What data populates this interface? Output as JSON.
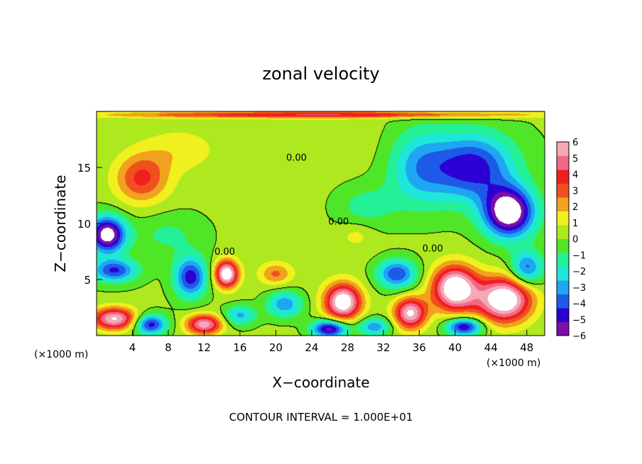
{
  "chart_data": {
    "type": "heatmap",
    "title": "zonal velocity",
    "xlabel": "X−coordinate",
    "ylabel": "Z−coordinate",
    "x_unit_left": "(×1000 m)",
    "x_unit_right": "(×1000 m)",
    "footer": "CONTOUR INTERVAL = 1.000E+01",
    "xlim": [
      0,
      50
    ],
    "ylim": [
      0,
      20
    ],
    "x_ticks": [
      {
        "value": 4,
        "label": "4"
      },
      {
        "value": 8,
        "label": "8"
      },
      {
        "value": 12,
        "label": "12"
      },
      {
        "value": 16,
        "label": "16"
      },
      {
        "value": 20,
        "label": "20"
      },
      {
        "value": 24,
        "label": "24"
      },
      {
        "value": 28,
        "label": "28"
      },
      {
        "value": 32,
        "label": "32"
      },
      {
        "value": 36,
        "label": "36"
      },
      {
        "value": 40,
        "label": "40"
      },
      {
        "value": 44,
        "label": "44"
      },
      {
        "value": 48,
        "label": "48"
      }
    ],
    "y_ticks": [
      {
        "value": 5,
        "label": "5"
      },
      {
        "value": 10,
        "label": "10"
      },
      {
        "value": 15,
        "label": "15"
      }
    ],
    "colorbar": {
      "range": [
        -6,
        6
      ],
      "ticks": [
        {
          "value": 6,
          "label": "6"
        },
        {
          "value": 5,
          "label": "5"
        },
        {
          "value": 4,
          "label": "4"
        },
        {
          "value": 3,
          "label": "3"
        },
        {
          "value": 2,
          "label": "2"
        },
        {
          "value": 1,
          "label": "1"
        },
        {
          "value": 0,
          "label": "0"
        },
        {
          "value": -1,
          "label": "−1"
        },
        {
          "value": -2,
          "label": "−2"
        },
        {
          "value": -3,
          "label": "−3"
        },
        {
          "value": -4,
          "label": "−4"
        },
        {
          "value": -5,
          "label": "−5"
        },
        {
          "value": -6,
          "label": "−6"
        }
      ],
      "colors": [
        "#7b0fa8",
        "#2a00d4",
        "#1e5ae8",
        "#1ea6f2",
        "#1ee6d8",
        "#24f098",
        "#50e628",
        "#aee81e",
        "#f0f01e",
        "#f0a21e",
        "#f0501e",
        "#f01e1e",
        "#f06a86",
        "#f5a8b6"
      ]
    },
    "contour_label": "0.00",
    "contour_label_positions": [
      [
        14.3,
        7.2
      ],
      [
        22.3,
        15.6
      ],
      [
        27,
        9.9
      ],
      [
        37.5,
        7.5
      ]
    ],
    "features": [
      {
        "x": 5.0,
        "z": 14.0,
        "v": 3.5,
        "sx": 3.0,
        "sz": 2.2
      },
      {
        "x": 9.0,
        "z": 16.5,
        "v": 1.2,
        "sx": 4.0,
        "sz": 2.0
      },
      {
        "x": 22.0,
        "z": 17.0,
        "v": 0.4,
        "sx": 9.0,
        "sz": 2.0
      },
      {
        "x": 42.0,
        "z": 15.0,
        "v": -5.0,
        "sx": 4.5,
        "sz": 3.0
      },
      {
        "x": 36.0,
        "z": 15.0,
        "v": -3.0,
        "sx": 3.5,
        "sz": 3.5
      },
      {
        "x": 46.0,
        "z": 11.0,
        "v": -7.5,
        "sx": 2.8,
        "sz": 2.2
      },
      {
        "x": 1.2,
        "z": 9.0,
        "v": -7.0,
        "sx": 2.0,
        "sz": 1.6
      },
      {
        "x": 2.0,
        "z": 5.8,
        "v": -4.5,
        "sx": 2.5,
        "sz": 1.0
      },
      {
        "x": 10.5,
        "z": 5.2,
        "v": -5.0,
        "sx": 1.8,
        "sz": 1.8
      },
      {
        "x": 14.5,
        "z": 5.5,
        "v": 7.0,
        "sx": 1.3,
        "sz": 1.2
      },
      {
        "x": 21.0,
        "z": 2.8,
        "v": -3.5,
        "sx": 2.0,
        "sz": 1.2
      },
      {
        "x": 20.0,
        "z": 5.5,
        "v": 2.5,
        "sx": 1.8,
        "sz": 1.0
      },
      {
        "x": 27.5,
        "z": 3.0,
        "v": 7.0,
        "sx": 2.0,
        "sz": 1.6
      },
      {
        "x": 33.5,
        "z": 5.5,
        "v": -4.5,
        "sx": 2.2,
        "sz": 1.3
      },
      {
        "x": 35.0,
        "z": 2.0,
        "v": 6.0,
        "sx": 1.8,
        "sz": 1.4
      },
      {
        "x": 40.0,
        "z": 4.2,
        "v": 7.5,
        "sx": 2.5,
        "sz": 2.0
      },
      {
        "x": 45.5,
        "z": 3.2,
        "v": 7.5,
        "sx": 3.0,
        "sz": 2.0
      },
      {
        "x": 2.0,
        "z": 1.5,
        "v": 6.0,
        "sx": 2.5,
        "sz": 1.0
      },
      {
        "x": 6.0,
        "z": 1.0,
        "v": -5.0,
        "sx": 1.8,
        "sz": 0.9
      },
      {
        "x": 12.0,
        "z": 1.0,
        "v": 5.5,
        "sx": 2.0,
        "sz": 0.9
      },
      {
        "x": 16.0,
        "z": 1.8,
        "v": -3.0,
        "sx": 1.8,
        "sz": 0.9
      },
      {
        "x": 26.0,
        "z": 0.6,
        "v": -6.0,
        "sx": 2.0,
        "sz": 0.8
      },
      {
        "x": 31.0,
        "z": 0.8,
        "v": -3.5,
        "sx": 1.8,
        "sz": 0.8
      },
      {
        "x": 41.0,
        "z": 0.8,
        "v": -5.5,
        "sx": 2.0,
        "sz": 0.8
      },
      {
        "x": 48.0,
        "z": 6.0,
        "v": -4.0,
        "sx": 1.8,
        "sz": 1.5
      },
      {
        "x": 29.0,
        "z": 9.0,
        "v": 1.0,
        "sx": 2.0,
        "sz": 1.2
      },
      {
        "x": 30.0,
        "z": 11.5,
        "v": -1.5,
        "sx": 3.5,
        "sz": 2.0
      },
      {
        "x": 8.0,
        "z": 9.0,
        "v": -1.2,
        "sx": 4.0,
        "sz": 2.0
      },
      {
        "x": 25.0,
        "z": 19.7,
        "v": 4.0,
        "sx": 25.0,
        "sz": 0.3
      }
    ]
  }
}
